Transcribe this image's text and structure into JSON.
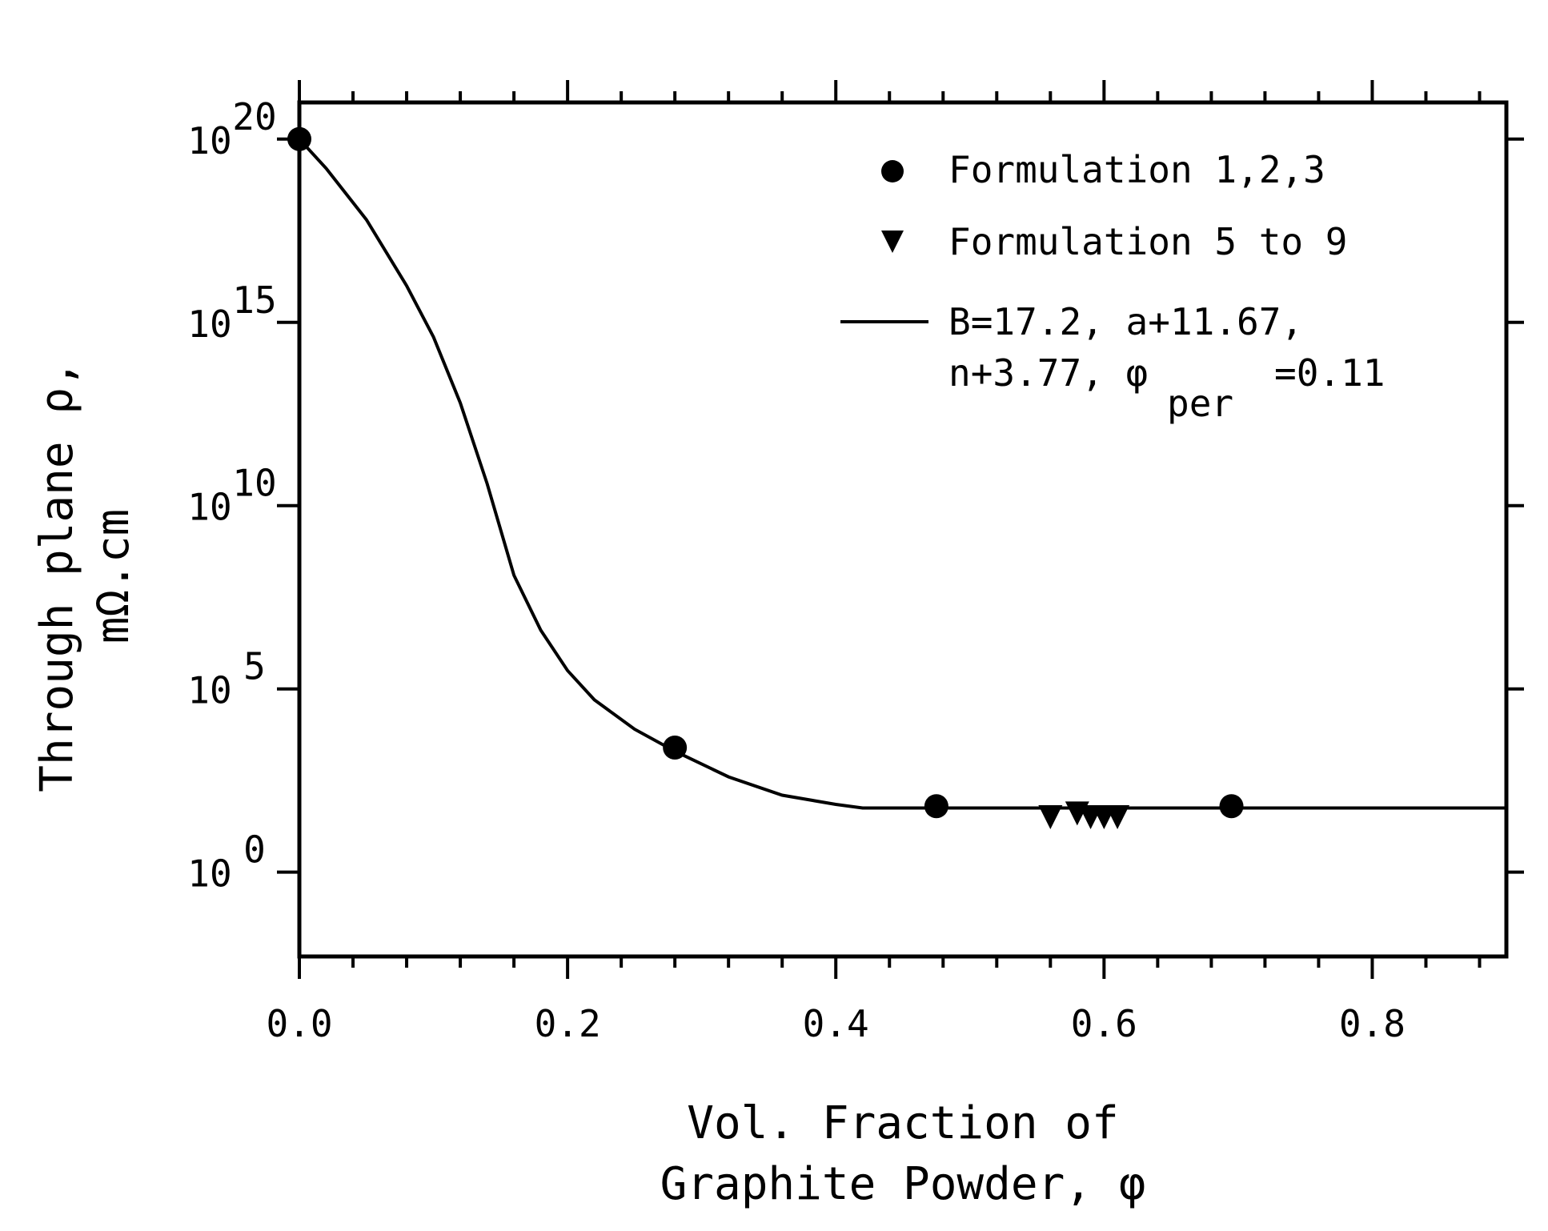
{
  "chart_data": {
    "type": "scatter",
    "xlabel_lines": [
      "Vol. Fraction of",
      "Graphite Powder, φ"
    ],
    "ylabel_lines": [
      "Through plane ρ,",
      "mΩ.cm"
    ],
    "xlim": [
      0.0,
      0.9
    ],
    "xticks": [
      "0.0",
      "0.2",
      "0.4",
      "0.6",
      "0.8"
    ],
    "y_scale": "log10",
    "ylim_exponent": [
      -2.3,
      21
    ],
    "yticks": [
      {
        "base": "10",
        "exp": "20"
      },
      {
        "base": "10",
        "exp": "15"
      },
      {
        "base": "10",
        "exp": "10"
      },
      {
        "base": "10",
        "exp": "5"
      },
      {
        "base": "10",
        "exp": "0"
      }
    ],
    "legend_position": "top-right",
    "series": [
      {
        "name": "Formulation 1,2,3",
        "marker": "circle",
        "x": [
          0.0,
          0.28,
          0.475,
          0.695
        ],
        "log10_y": [
          20.0,
          3.4,
          1.8,
          1.8
        ]
      },
      {
        "name": "Formulation 5 to 9",
        "marker": "triangle-down",
        "x": [
          0.56,
          0.58,
          0.59,
          0.6,
          0.61
        ],
        "log10_y": [
          1.5,
          1.6,
          1.5,
          1.5,
          1.5
        ]
      },
      {
        "name": "B=17.2, a+11.67, n+3.77, φper =0.11",
        "name_lines": [
          "B=17.2, a+11.67,",
          "n+3.77, φ",
          "per",
          "=0.11"
        ],
        "marker": "line",
        "x": [
          0.0,
          0.02,
          0.05,
          0.08,
          0.1,
          0.12,
          0.14,
          0.16,
          0.18,
          0.2,
          0.22,
          0.25,
          0.28,
          0.32,
          0.36,
          0.4,
          0.42,
          0.45,
          0.5,
          0.6,
          0.7,
          0.8,
          0.9
        ],
        "log10_y": [
          20.0,
          19.2,
          17.8,
          16.0,
          14.6,
          12.8,
          10.6,
          8.1,
          6.6,
          5.5,
          4.7,
          3.9,
          3.3,
          2.6,
          2.1,
          1.85,
          1.75,
          1.75,
          1.75,
          1.75,
          1.75,
          1.75,
          1.75
        ]
      }
    ]
  }
}
